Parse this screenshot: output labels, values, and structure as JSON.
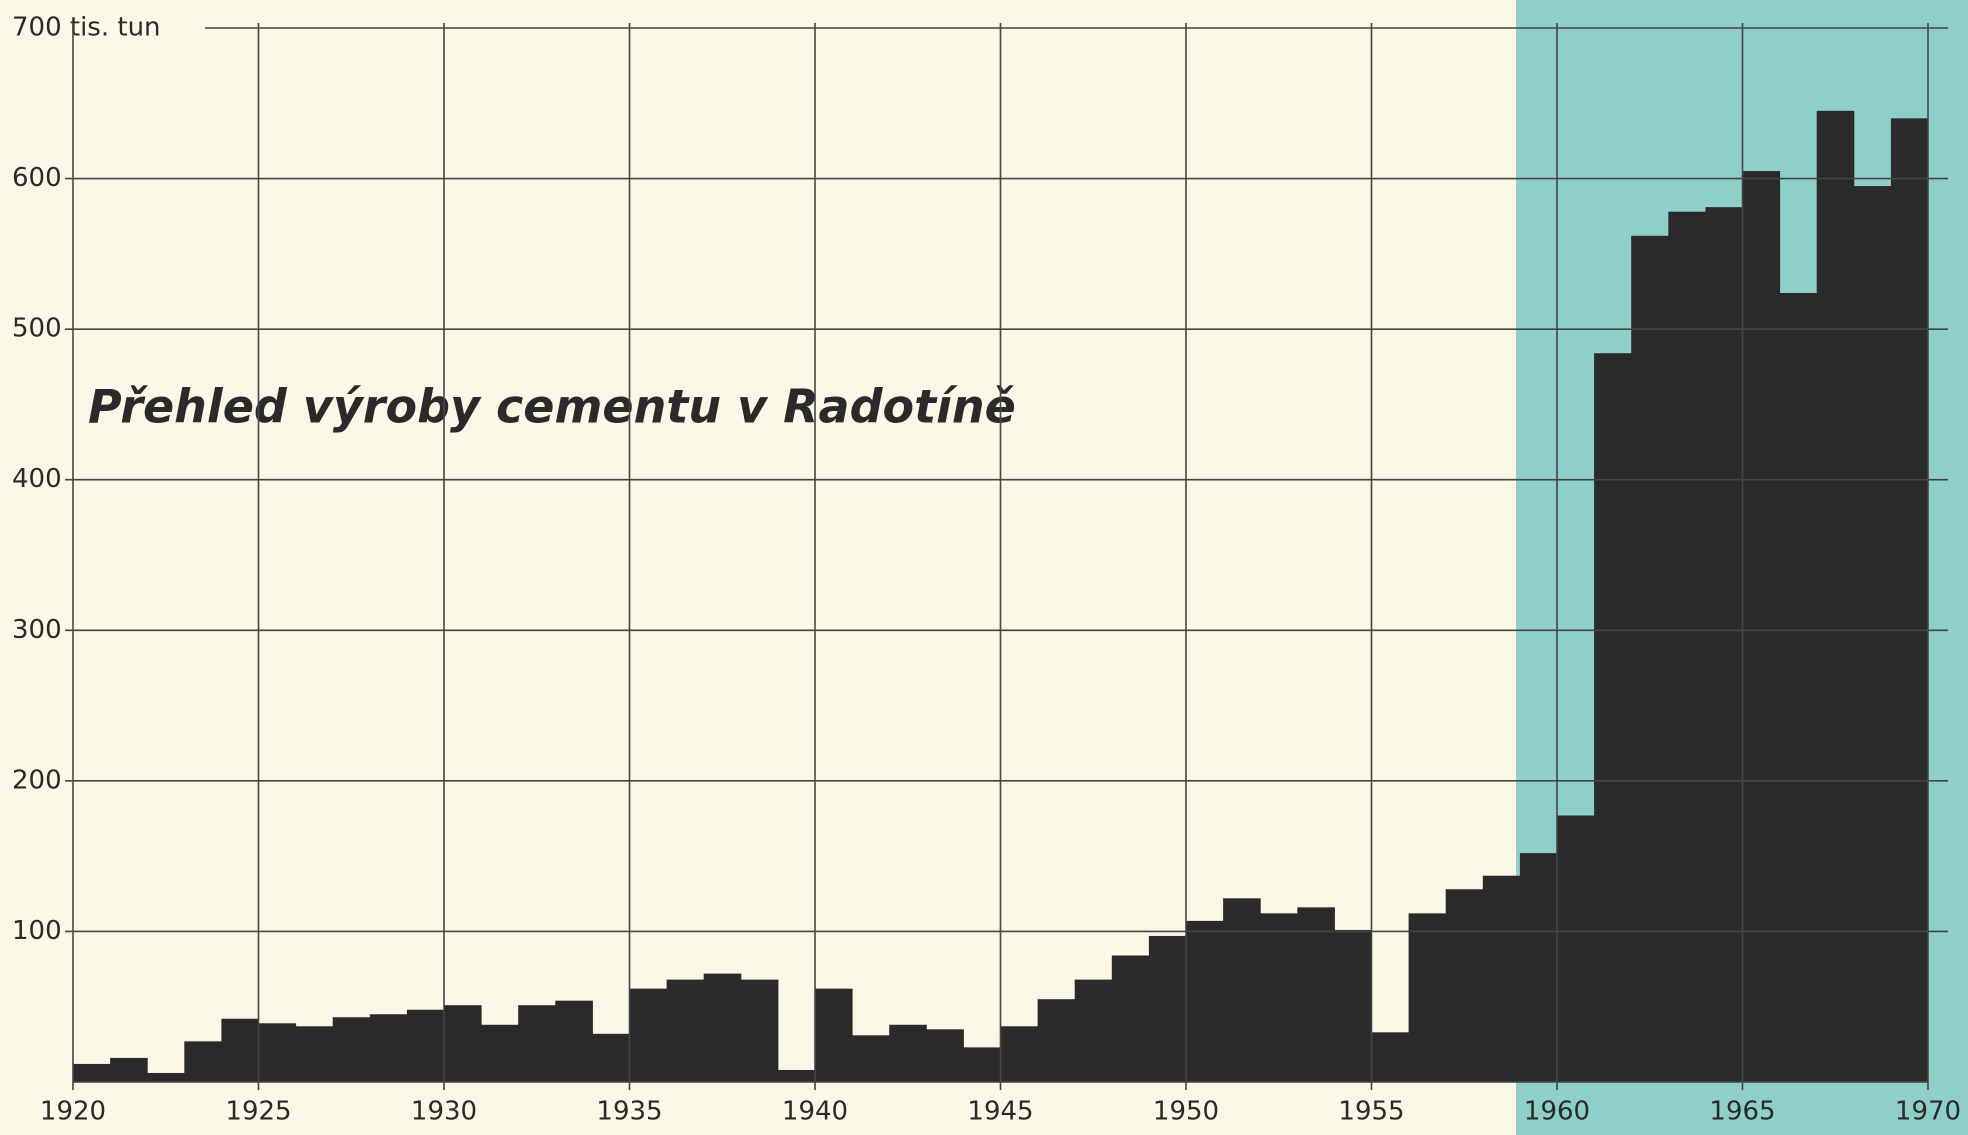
{
  "chart_data": {
    "type": "histogram",
    "title": "Přehled výroby cementu v Radotíně",
    "x": [
      1920,
      1921,
      1922,
      1923,
      1924,
      1925,
      1926,
      1927,
      1928,
      1929,
      1930,
      1931,
      1932,
      1933,
      1934,
      1935,
      1936,
      1937,
      1938,
      1939,
      1940,
      1941,
      1942,
      1943,
      1944,
      1945,
      1946,
      1947,
      1948,
      1949,
      1950,
      1951,
      1952,
      1953,
      1954,
      1955,
      1956,
      1957,
      1958,
      1959,
      1960,
      1961,
      1962,
      1963,
      1964,
      1965,
      1966,
      1967,
      1968,
      1969
    ],
    "values": [
      12,
      16,
      6,
      27,
      42,
      39,
      37,
      43,
      45,
      48,
      51,
      38,
      51,
      54,
      32,
      62,
      68,
      72,
      68,
      8,
      62,
      31,
      38,
      35,
      23,
      37,
      55,
      68,
      84,
      97,
      107,
      122,
      112,
      116,
      101,
      33,
      112,
      128,
      137,
      152,
      177,
      484,
      562,
      578,
      581,
      605,
      524,
      645,
      595,
      640
    ],
    "color": "#2b2a2a",
    "xlim": [
      1920,
      1970
    ],
    "xticks": [
      1920,
      1925,
      1930,
      1935,
      1940,
      1945,
      1950,
      1955,
      1960,
      1965,
      1970
    ],
    "ylim": [
      0,
      700
    ],
    "yticks": [
      100,
      200,
      300,
      400,
      500,
      600,
      {
        "value": 700,
        "label": "700 tis. tun"
      }
    ],
    "grid": true
  }
}
